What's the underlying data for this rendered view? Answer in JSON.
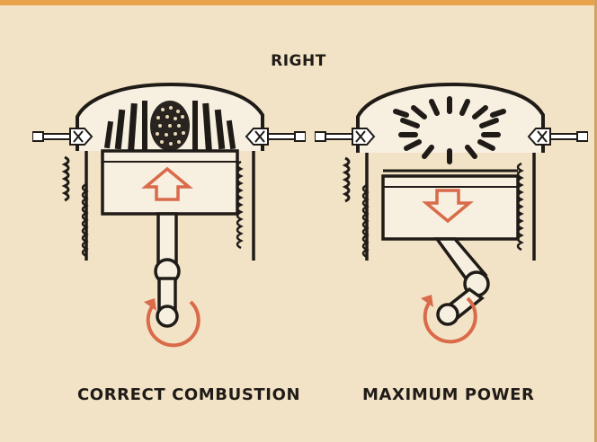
{
  "header": {
    "title": "RIGHT"
  },
  "panels": [
    {
      "caption": "CORRECT COMBUSTION",
      "arrow": "up",
      "flame": "banded-dotted"
    },
    {
      "caption": "MAXIMUM POWER",
      "arrow": "down",
      "flame": "explosion"
    }
  ],
  "colors": {
    "background": "#f3e3c6",
    "ink": "#1f1b17",
    "accent": "#d96a4a",
    "chamber": "#f7efe0"
  },
  "icons": [
    "spark-plug-icon",
    "piston-arrow-icon",
    "rotation-arrow-icon"
  ]
}
